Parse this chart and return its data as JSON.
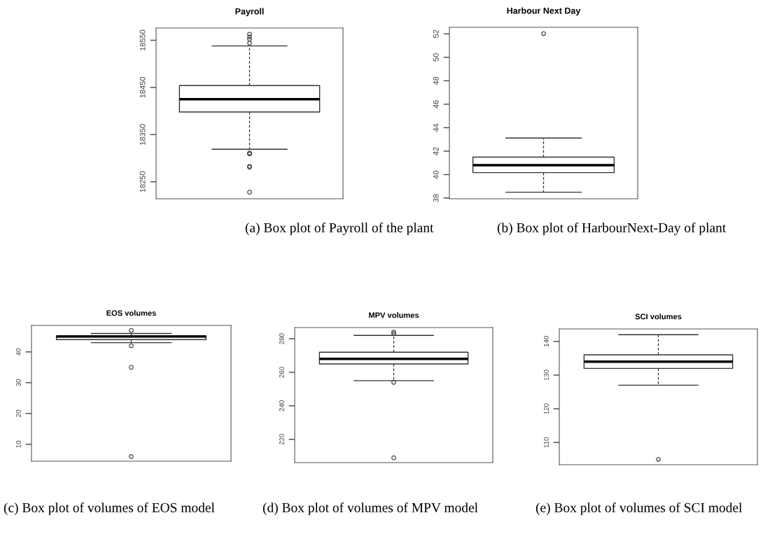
{
  "chart_data": [
    {
      "type": "box",
      "title": "Payroll",
      "categories": [
        null
      ],
      "tick_labels": "y",
      "boxes": [
        {
          "low": 18319,
          "q1": 18398,
          "median": 18425,
          "q3": 18454,
          "high": 18538,
          "outliers": [
            18563,
            18557,
            18552,
            18544,
            18311,
            18309,
            18283,
            18281,
            18228
          ]
        }
      ],
      "ylim": [
        18214,
        18576
      ],
      "yticks": [
        18250,
        18350,
        18450,
        18550
      ],
      "annotations": [
        "(a) Box plot of Payroll of the plant"
      ]
    },
    {
      "type": "box",
      "title": "Harbour Next Day",
      "categories": [
        null
      ],
      "tick_labels": "y",
      "boxes": [
        {
          "low": 38.5,
          "q1": 40.17,
          "median": 40.81,
          "q3": 41.49,
          "high": 43.12,
          "outliers": [
            52.02
          ]
        }
      ],
      "ylim": [
        37.94,
        52.56
      ],
      "yticks": [
        38,
        40,
        42,
        44,
        46,
        48,
        50,
        52
      ],
      "annotations": [
        "(b) Box plot of HarbourNext-Day of plant"
      ]
    },
    {
      "type": "box",
      "title": "EOS volumes",
      "categories": [
        null
      ],
      "tick_labels": "y",
      "boxes": [
        {
          "low": 43,
          "q1": 44,
          "median": 45,
          "q3": 45.2,
          "high": 46,
          "outliers": [
            47,
            42,
            35,
            6
          ]
        }
      ],
      "ylim": [
        4.5,
        48.6
      ],
      "yticks": [
        10,
        20,
        30,
        40
      ],
      "annotations": [
        "(c) Box plot of volumes of EOS model"
      ]
    },
    {
      "type": "box",
      "title": "MPV volumes",
      "categories": [
        null
      ],
      "tick_labels": "y",
      "boxes": [
        {
          "low": 255,
          "q1": 265,
          "median": 268,
          "q3": 272,
          "high": 282,
          "outliers": [
            284,
            283,
            254,
            209
          ]
        }
      ],
      "ylim": [
        206.1,
        286.7
      ],
      "yticks": [
        220,
        240,
        260,
        280
      ],
      "annotations": [
        "(d) Box plot of volumes of MPV model"
      ]
    },
    {
      "type": "box",
      "title": "SCI volumes",
      "categories": [
        null
      ],
      "tick_labels": "y",
      "boxes": [
        {
          "low": 127,
          "q1": 132,
          "median": 134,
          "q3": 136,
          "high": 142,
          "outliers": [
            105
          ]
        }
      ],
      "ylim": [
        103.4,
        143.7
      ],
      "yticks": [
        110,
        120,
        130,
        140
      ],
      "annotations": [
        "(e) Box plot of volumes of SCI model"
      ]
    }
  ]
}
